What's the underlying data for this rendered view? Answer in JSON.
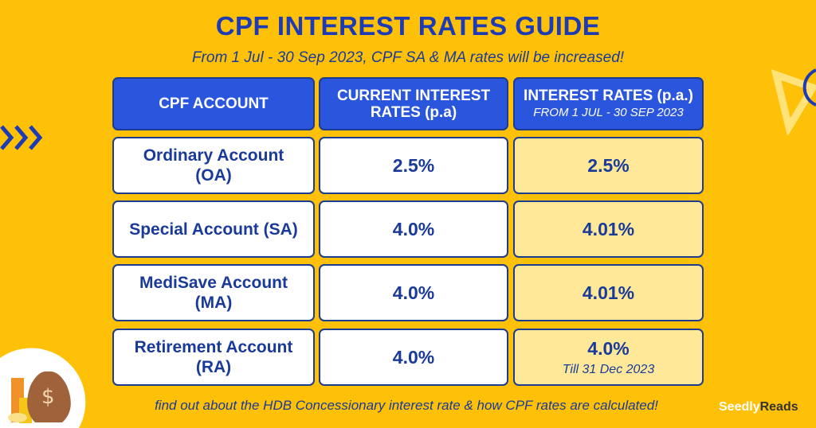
{
  "title": "CPF INTEREST RATES GUIDE",
  "subtitle": "From 1 Jul - 30 Sep 2023, CPF SA & MA rates will be increased!",
  "headers": {
    "col1": "CPF ACCOUNT",
    "col2": "CURRENT INTEREST RATES (p.a)",
    "col3": "INTEREST RATES (p.a.)",
    "col3_sub": "FROM 1 JUL - 30 SEP 2023"
  },
  "rows": [
    {
      "account": "Ordinary Account (OA)",
      "current": "2.5%",
      "new": "2.5%"
    },
    {
      "account": "Special Account (SA)",
      "current": "4.0%",
      "new": "4.01%"
    },
    {
      "account": "MediSave Account (MA)",
      "current": "4.0%",
      "new": "4.01%"
    },
    {
      "account": "Retirement Account (RA)",
      "current": "4.0%",
      "new": "4.0%",
      "note": "Till 31 Dec 2023"
    }
  ],
  "footer": "find out about the HDB Concessionary interest rate & how CPF rates are calculated!",
  "brand": {
    "part1": "Seedly",
    "part2": "Reads"
  },
  "colors": {
    "background": "#FFC107",
    "header": "#2a55dd",
    "highlight": "#FFE999",
    "text": "#1a3a9a"
  }
}
